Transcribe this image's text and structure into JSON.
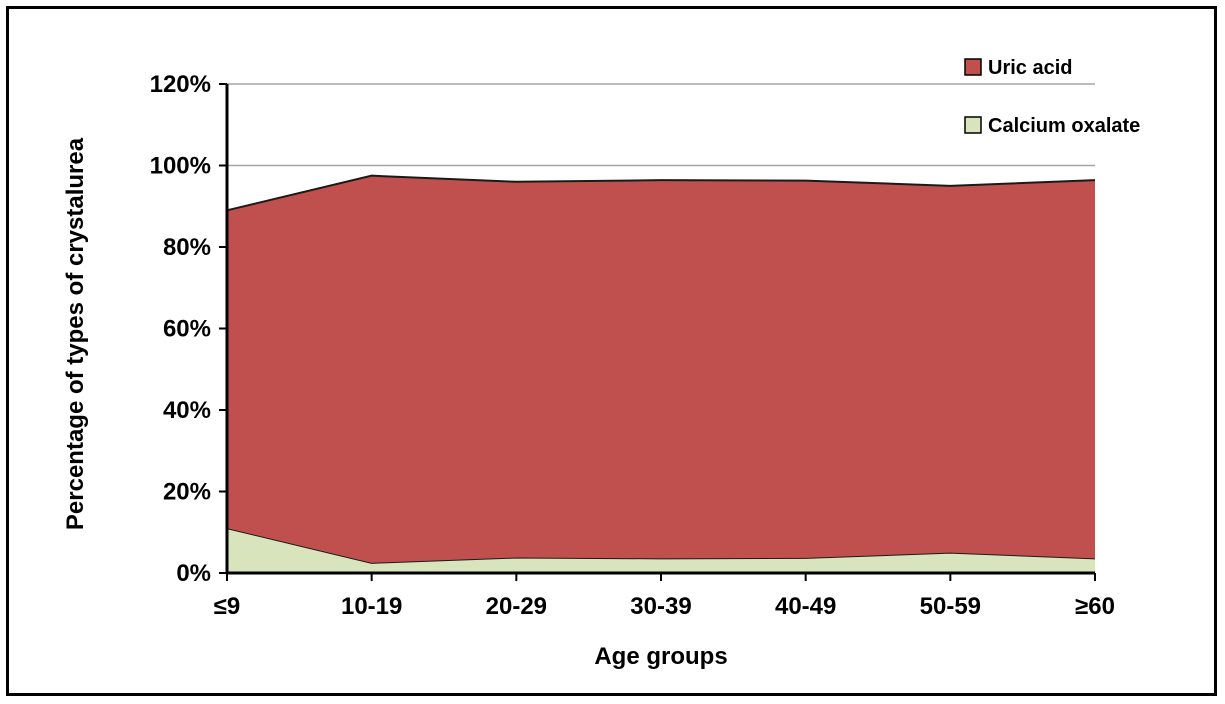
{
  "chart_data": {
    "type": "area",
    "stacked": true,
    "categories": [
      "≤9",
      "10-19",
      "20-29",
      "30-39",
      "40-49",
      "50-59",
      "≥60"
    ],
    "series": [
      {
        "name": "Calcium oxalate",
        "color": "#d8e4bc",
        "values": [
          11,
          2.5,
          3.8,
          3.6,
          3.7,
          5,
          3.6
        ]
      },
      {
        "name": "Uric acid",
        "color": "#c0504d",
        "values": [
          78,
          95,
          92.2,
          92.8,
          92.6,
          90,
          92.8
        ]
      }
    ],
    "xlabel": "Age groups",
    "ylabel": "Percentage of types of crystalurea",
    "yticks": [
      "0%",
      "20%",
      "40%",
      "60%",
      "80%",
      "100%",
      "120%"
    ],
    "ylim": [
      0,
      120
    ],
    "grid": "horizontal",
    "legend_position": "top-right",
    "legend_order": [
      "Uric acid",
      "Calcium oxalate"
    ]
  }
}
